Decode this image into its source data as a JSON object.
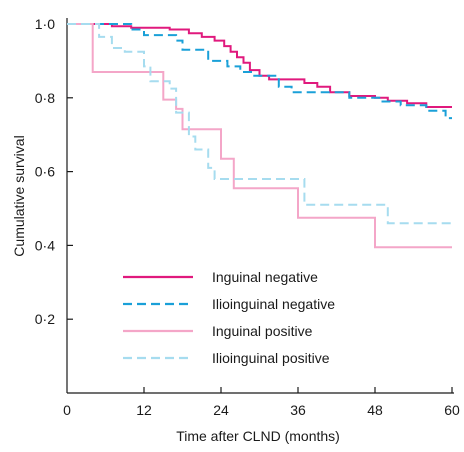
{
  "chart_data": {
    "type": "line",
    "subtype": "kaplan-meier step plot",
    "title": "",
    "xlabel": "Time after CLND (months)",
    "ylabel": "Cumulative survival",
    "xlim": [
      0,
      60
    ],
    "ylim": [
      0,
      1
    ],
    "xticks": [
      0,
      12,
      24,
      36,
      48,
      60
    ],
    "xtick_labels": [
      "0",
      "12",
      "24",
      "36",
      "48",
      "60"
    ],
    "yticks": [
      0.2,
      0.4,
      0.6,
      0.8,
      1.0
    ],
    "ytick_labels": [
      "0·2",
      "0·4",
      "0·6",
      "0·8",
      "1·0"
    ],
    "grid": false,
    "legend_position": "bottom-left",
    "series": [
      {
        "name": "Inguinal negative",
        "color": "#e0197d",
        "dash": "solid",
        "points": [
          [
            0,
            1.0
          ],
          [
            7,
            1.0
          ],
          [
            7,
            0.994
          ],
          [
            10,
            0.994
          ],
          [
            10,
            0.99
          ],
          [
            16,
            0.99
          ],
          [
            16,
            0.985
          ],
          [
            19,
            0.985
          ],
          [
            19,
            0.975
          ],
          [
            21,
            0.975
          ],
          [
            21,
            0.965
          ],
          [
            23,
            0.965
          ],
          [
            23,
            0.955
          ],
          [
            24.5,
            0.955
          ],
          [
            24.5,
            0.94
          ],
          [
            25.5,
            0.94
          ],
          [
            25.5,
            0.925
          ],
          [
            26.5,
            0.925
          ],
          [
            26.5,
            0.91
          ],
          [
            27.5,
            0.91
          ],
          [
            27.5,
            0.895
          ],
          [
            28.5,
            0.895
          ],
          [
            28.5,
            0.875
          ],
          [
            30,
            0.875
          ],
          [
            30,
            0.86
          ],
          [
            31.5,
            0.86
          ],
          [
            31.5,
            0.85
          ],
          [
            37,
            0.85
          ],
          [
            37,
            0.84
          ],
          [
            39,
            0.84
          ],
          [
            39,
            0.83
          ],
          [
            41,
            0.83
          ],
          [
            41,
            0.815
          ],
          [
            44,
            0.815
          ],
          [
            44,
            0.805
          ],
          [
            48,
            0.805
          ],
          [
            48,
            0.8
          ],
          [
            50,
            0.8
          ],
          [
            50,
            0.792
          ],
          [
            53,
            0.792
          ],
          [
            53,
            0.785
          ],
          [
            56,
            0.785
          ],
          [
            56,
            0.775
          ],
          [
            60,
            0.775
          ]
        ]
      },
      {
        "name": "Ilioinguinal negative",
        "color": "#1aa0d8",
        "dash": "dashed",
        "points": [
          [
            0,
            1.0
          ],
          [
            10,
            1.0
          ],
          [
            10,
            0.985
          ],
          [
            12,
            0.985
          ],
          [
            12,
            0.97
          ],
          [
            17,
            0.97
          ],
          [
            17,
            0.955
          ],
          [
            18,
            0.955
          ],
          [
            18,
            0.93
          ],
          [
            22,
            0.93
          ],
          [
            22,
            0.9
          ],
          [
            25,
            0.9
          ],
          [
            25,
            0.885
          ],
          [
            27,
            0.885
          ],
          [
            27,
            0.87
          ],
          [
            29,
            0.87
          ],
          [
            29,
            0.86
          ],
          [
            33,
            0.86
          ],
          [
            33,
            0.83
          ],
          [
            35,
            0.83
          ],
          [
            35,
            0.815
          ],
          [
            44,
            0.815
          ],
          [
            44,
            0.8
          ],
          [
            49,
            0.8
          ],
          [
            49,
            0.79
          ],
          [
            52,
            0.79
          ],
          [
            52,
            0.78
          ],
          [
            56,
            0.78
          ],
          [
            56,
            0.765
          ],
          [
            59,
            0.765
          ],
          [
            59,
            0.745
          ],
          [
            60,
            0.745
          ]
        ]
      },
      {
        "name": "Inguinal positive",
        "color": "#f4a6c8",
        "dash": "solid",
        "points": [
          [
            0,
            1.0
          ],
          [
            4,
            1.0
          ],
          [
            4,
            0.87
          ],
          [
            15,
            0.87
          ],
          [
            15,
            0.795
          ],
          [
            17,
            0.795
          ],
          [
            17,
            0.77
          ],
          [
            18,
            0.77
          ],
          [
            18,
            0.715
          ],
          [
            24,
            0.715
          ],
          [
            24,
            0.635
          ],
          [
            26,
            0.635
          ],
          [
            26,
            0.555
          ],
          [
            36,
            0.555
          ],
          [
            36,
            0.475
          ],
          [
            48,
            0.475
          ],
          [
            48,
            0.395
          ],
          [
            60,
            0.395
          ]
        ]
      },
      {
        "name": "Ilioinguinal positive",
        "color": "#a6dcef",
        "dash": "dashed",
        "points": [
          [
            0,
            1.0
          ],
          [
            5,
            1.0
          ],
          [
            5,
            0.965
          ],
          [
            7,
            0.965
          ],
          [
            7,
            0.935
          ],
          [
            9,
            0.935
          ],
          [
            9,
            0.925
          ],
          [
            12,
            0.925
          ],
          [
            12,
            0.885
          ],
          [
            13,
            0.885
          ],
          [
            13,
            0.845
          ],
          [
            16,
            0.845
          ],
          [
            16,
            0.825
          ],
          [
            17,
            0.825
          ],
          [
            17,
            0.76
          ],
          [
            19,
            0.76
          ],
          [
            19,
            0.695
          ],
          [
            20,
            0.695
          ],
          [
            20,
            0.66
          ],
          [
            22,
            0.66
          ],
          [
            22,
            0.61
          ],
          [
            23,
            0.61
          ],
          [
            23,
            0.58
          ],
          [
            37,
            0.58
          ],
          [
            37,
            0.51
          ],
          [
            50,
            0.51
          ],
          [
            50,
            0.46
          ],
          [
            60,
            0.46
          ]
        ]
      }
    ]
  }
}
